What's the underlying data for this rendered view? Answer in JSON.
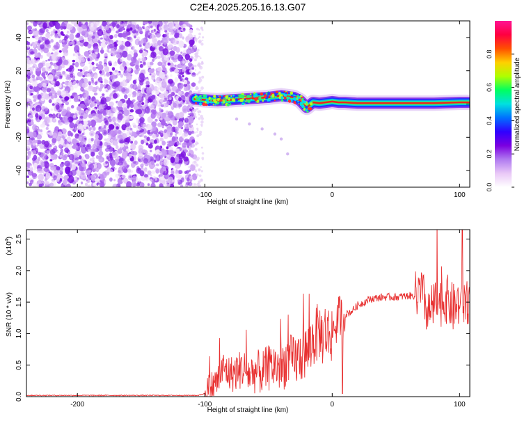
{
  "chart_data": [
    {
      "type": "heatmap",
      "title": "C2E4.2025.205.16.13.G07",
      "xlabel": "Height of straight line (km)",
      "ylabel": "Frequency (Hz)",
      "xlim": [
        -240,
        108
      ],
      "ylim": [
        -50,
        50
      ],
      "xticks": [
        -200,
        -100,
        0,
        100
      ],
      "yticks": [
        -40,
        -20,
        0,
        20,
        40
      ],
      "colorbar": {
        "label": "Normalized spectral amplitude",
        "range": [
          0,
          1
        ],
        "ticks": [
          "0.0",
          "0.2",
          "0.4",
          "0.6",
          "0.8"
        ],
        "colors": [
          "#ffffff",
          "#e9c8f7",
          "#b07af0",
          "#7b00e0",
          "#3000ff",
          "#0070ff",
          "#00e0e0",
          "#00ff60",
          "#b0ff00",
          "#ffd000",
          "#ff5000",
          "#ff0040",
          "#ff1493"
        ]
      },
      "noise_region": {
        "x_range": [
          -240,
          -108
        ],
        "frequency_range": [
          -50,
          50
        ]
      },
      "signal_track": {
        "x": [
          -108,
          -100,
          -90,
          -80,
          -70,
          -60,
          -50,
          -40,
          -30,
          -25,
          -20,
          -15,
          -10,
          0,
          5,
          10,
          20,
          40,
          60,
          80,
          100,
          108
        ],
        "frequency": [
          3,
          2.5,
          2,
          2.5,
          3,
          3.5,
          4,
          5,
          4,
          2,
          -2,
          1,
          0.5,
          1.5,
          1,
          1,
          0.5,
          0.5,
          0.5,
          0.5,
          1,
          1
        ]
      },
      "faint_trail": {
        "x": [
          -75,
          -65,
          -55,
          -45,
          -40,
          -35
        ],
        "frequency": [
          -9,
          -12,
          -15,
          -18,
          -21,
          -30
        ]
      }
    },
    {
      "type": "line",
      "xlabel": "Height of straight line (km)",
      "ylabel": "SNR (10 * v/v)",
      "scale_label": "(x10",
      "scale_exponent": "4",
      "xlim": [
        -240,
        108
      ],
      "ylim": [
        0,
        2.65
      ],
      "xticks": [
        -200,
        -100,
        0,
        100
      ],
      "yticks": [
        "0.0",
        "0.5",
        "1.0",
        "1.5",
        "2.0",
        "2.5"
      ],
      "color": "#e83030",
      "series": [
        {
          "x": [
            -240,
            -200,
            -150,
            -105,
            -100,
            -95,
            -90,
            -85,
            -80,
            -75,
            -70,
            -65,
            -60,
            -55,
            -50,
            -45,
            -40,
            -35,
            -30,
            -25,
            -20,
            -15,
            -12,
            -10,
            -8,
            -5,
            -2,
            0,
            3,
            6,
            8,
            10,
            15,
            20,
            25,
            30,
            40,
            50,
            60,
            65,
            70,
            72,
            75,
            80,
            85,
            90,
            95,
            100,
            102,
            104,
            108
          ],
          "y": [
            0.02,
            0.02,
            0.02,
            0.02,
            0.05,
            0.15,
            0.25,
            0.45,
            0.35,
            0.4,
            0.45,
            0.35,
            0.4,
            0.38,
            0.45,
            0.5,
            0.45,
            0.6,
            0.55,
            0.65,
            0.7,
            0.9,
            1.0,
            1.05,
            0.95,
            1.05,
            0.95,
            1.05,
            1.15,
            1.3,
            1.25,
            1.3,
            1.35,
            1.45,
            1.5,
            1.55,
            1.58,
            1.58,
            1.6,
            1.6,
            1.62,
            1.55,
            1.3,
            1.45,
            1.5,
            1.55,
            1.4,
            1.5,
            1.3,
            1.5,
            1.55
          ]
        }
      ]
    }
  ]
}
